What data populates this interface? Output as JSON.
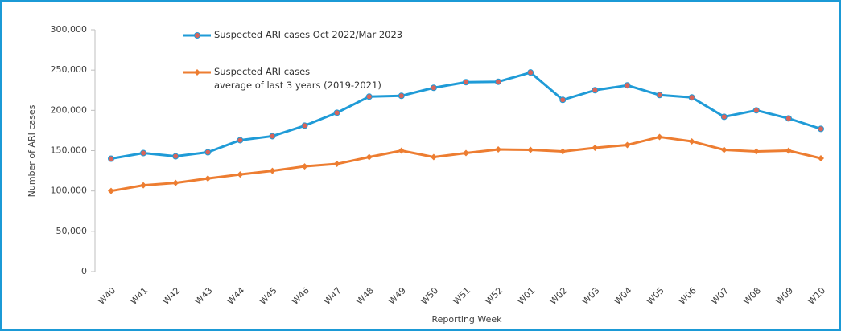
{
  "chart_data": {
    "type": "line",
    "y_axis_label": "Number of ARI cases",
    "x_axis_label": "Reporting Week",
    "categories": [
      "W40",
      "W41",
      "W42",
      "W43",
      "W44",
      "W45",
      "W46",
      "W47",
      "W48",
      "W49",
      "W50",
      "W51",
      "W52",
      "W01",
      "W02",
      "W03",
      "W04",
      "W05",
      "W06",
      "W07",
      "W08",
      "W09",
      "W10"
    ],
    "series": [
      {
        "name": "Suspected ARI cases Oct 2022/Mar 2023",
        "color": "#1f9bd7",
        "marker": "circle",
        "marker_color": "#d9645a",
        "values": [
          140000,
          147000,
          143000,
          148000,
          163000,
          168000,
          181000,
          197000,
          217000,
          218000,
          228000,
          235000,
          235500,
          247000,
          213000,
          225000,
          231000,
          219000,
          216000,
          192000,
          200000,
          190000,
          177000
        ]
      },
      {
        "name": "Suspected ARI cases\naverage of last 3 years (2019-2021)",
        "color": "#ed7d31",
        "marker": "diamond",
        "marker_color": "#ed7d31",
        "values": [
          100000,
          107000,
          110000,
          115500,
          120500,
          125000,
          130500,
          133500,
          142000,
          150000,
          142000,
          147000,
          151500,
          151000,
          149000,
          153500,
          157000,
          167000,
          161500,
          151000,
          149000,
          150000,
          140500
        ]
      }
    ],
    "ylim": [
      0,
      300000
    ],
    "yticks": [
      0,
      {
        "value": 50000,
        "label": "50,000"
      },
      {
        "value": 100000,
        "label": "100,000"
      },
      {
        "value": 150000,
        "label": "150,000"
      },
      {
        "value": 200000,
        "label": "200,000"
      },
      {
        "value": 250000,
        "label": "250,000"
      },
      {
        "value": 300000,
        "label": "300,000"
      }
    ],
    "grid": false
  }
}
